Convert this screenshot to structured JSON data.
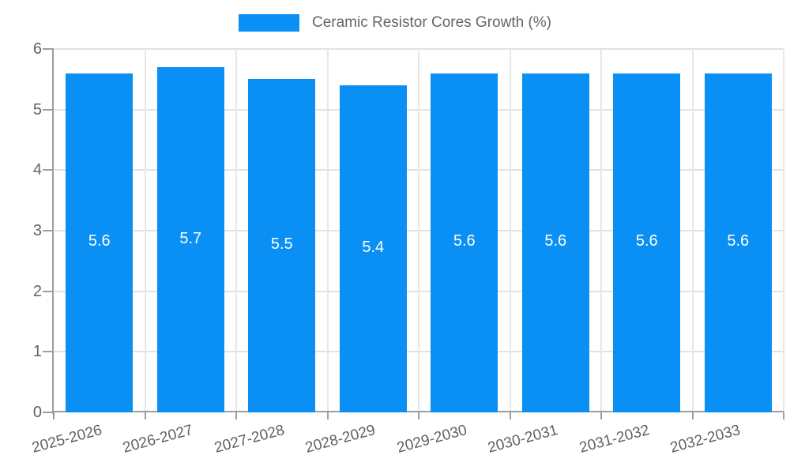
{
  "chart_data": {
    "type": "bar",
    "title": "Ceramic Resistor Cores Growth (%)",
    "categories": [
      "2025-2026",
      "2026-2027",
      "2027-2028",
      "2028-2029",
      "2029-2030",
      "2030-2031",
      "2031-2032",
      "2032-2033"
    ],
    "series": [
      {
        "name": "Ceramic Resistor Cores Growth (%)",
        "values": [
          5.6,
          5.7,
          5.5,
          5.4,
          5.6,
          5.6,
          5.6,
          5.6
        ]
      }
    ],
    "value_labels": [
      "5.6",
      "5.7",
      "5.5",
      "5.4",
      "5.6",
      "5.6",
      "5.6",
      "5.6"
    ],
    "xlabel": "",
    "ylabel": "",
    "ylim": [
      0,
      6
    ],
    "yticks": [
      0,
      1,
      2,
      3,
      4,
      5,
      6
    ],
    "ytick_labels": [
      "0",
      "1",
      "2",
      "3",
      "4",
      "5",
      "6"
    ],
    "grid": true,
    "legend_position": "top-center"
  },
  "legend": {
    "label": "Ceramic Resistor Cores Growth (%)"
  },
  "colors": {
    "bar": "#0a8ff4",
    "axis": "#9e9e9e",
    "h_grid": "#e2e2e2",
    "v_grid": "#e7e7e7",
    "tick_text": "#636363",
    "legend_text": "#666666",
    "value_label_text": "#ffffff",
    "background": "#ffffff"
  }
}
